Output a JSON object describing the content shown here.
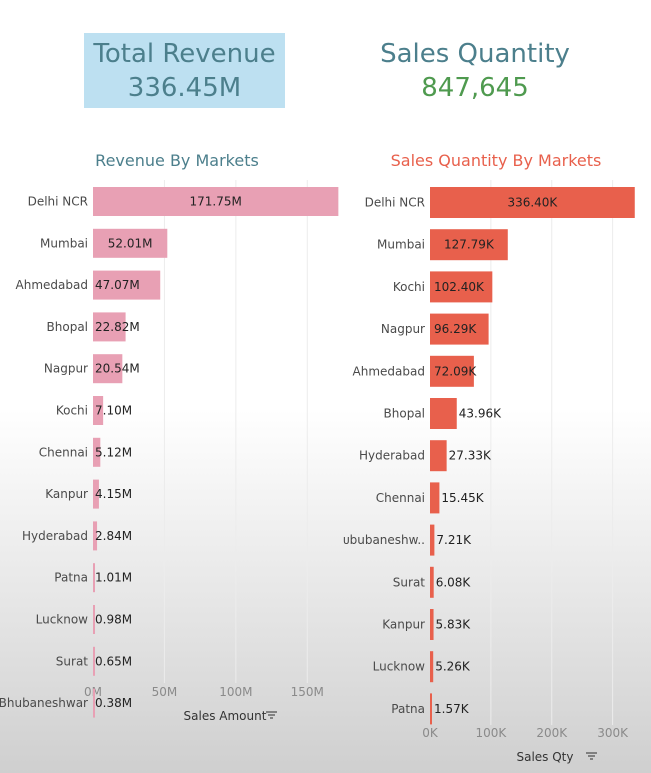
{
  "kpis": {
    "revenue": {
      "label": "Total Revenue",
      "value": "336.45M",
      "label_color": "#4c7f8c",
      "value_color": "#4c7f8c"
    },
    "quantity": {
      "label": "Sales Quantity",
      "value": "847,645",
      "label_color": "#4c7f8c",
      "value_color": "#4f9a4f"
    }
  },
  "chart_data": [
    {
      "type": "bar",
      "orientation": "horizontal",
      "title": "Revenue By Markets",
      "title_color": "#4c7f8c",
      "xlabel": "Sales Amount",
      "bar_color": "#e8a0b4",
      "xlim": [
        0,
        175
      ],
      "xticks": [
        "0M",
        "50M",
        "100M",
        "150M"
      ],
      "xtick_values": [
        0,
        50,
        100,
        150
      ],
      "categories": [
        "Delhi NCR",
        "Mumbai",
        "Ahmedabad",
        "Bhopal",
        "Nagpur",
        "Kochi",
        "Chennai",
        "Kanpur",
        "Hyderabad",
        "Patna",
        "Lucknow",
        "Surat",
        "Bhubaneshwar"
      ],
      "values": [
        171.75,
        52.01,
        47.07,
        22.82,
        20.54,
        7.1,
        5.12,
        4.15,
        2.84,
        1.01,
        0.98,
        0.65,
        0.38
      ],
      "labels": [
        "171.75M",
        "52.01M",
        "47.07M",
        "22.82M",
        "20.54M",
        "7.10M",
        "5.12M",
        "4.15M",
        "2.84M",
        "1.01M",
        "0.98M",
        "0.65M",
        "0.38M"
      ]
    },
    {
      "type": "bar",
      "orientation": "horizontal",
      "title": "Sales Quantity By Markets",
      "title_color": "#e8604c",
      "xlabel": "Sales Qty",
      "bar_color": "#e8604c",
      "xlim": [
        0,
        345
      ],
      "xticks": [
        "0K",
        "100K",
        "200K",
        "300K"
      ],
      "xtick_values": [
        0,
        100,
        200,
        300
      ],
      "categories": [
        "Delhi NCR",
        "Mumbai",
        "Kochi",
        "Nagpur",
        "Ahmedabad",
        "Bhopal",
        "Hyderabad",
        "Chennai",
        "ᴜbubaneshw..",
        "Surat",
        "Kanpur",
        "Lucknow",
        "Patna"
      ],
      "values": [
        336.4,
        127.79,
        102.4,
        96.29,
        72.09,
        43.96,
        27.33,
        15.45,
        7.21,
        6.08,
        5.83,
        5.26,
        1.57
      ],
      "labels": [
        "336.40K",
        "127.79K",
        "102.40K",
        "96.29K",
        "72.09K",
        "43.96K",
        "27.33K",
        "15.45K",
        "7.21K",
        "6.08K",
        "5.83K",
        "5.26K",
        "1.57K"
      ]
    }
  ]
}
